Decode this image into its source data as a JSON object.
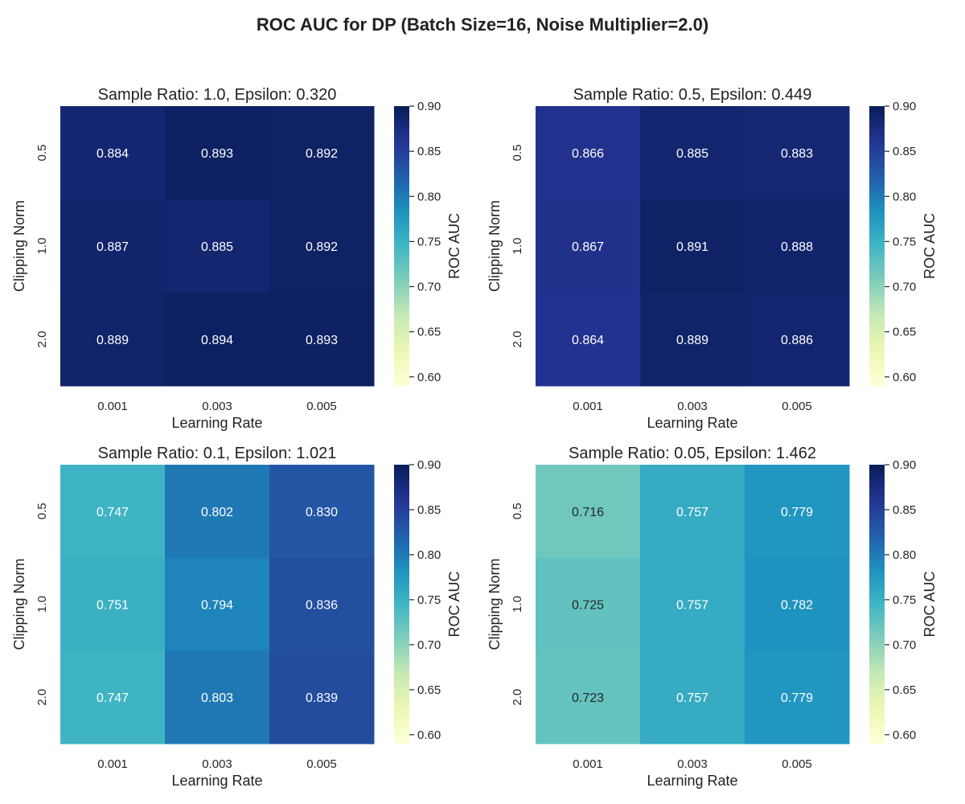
{
  "title": "ROC AUC for DP (Batch Size=16, Noise Multiplier=2.0)",
  "chart_data": [
    {
      "type": "heatmap",
      "title": "Sample Ratio: 1.0, Epsilon: 0.320",
      "xlabel": "Learning Rate",
      "ylabel": "Clipping Norm",
      "colorbar_label": "ROC AUC",
      "x": [
        "0.001",
        "0.003",
        "0.005"
      ],
      "y": [
        "0.5",
        "1.0",
        "2.0"
      ],
      "values": [
        [
          0.884,
          0.893,
          0.892
        ],
        [
          0.887,
          0.885,
          0.892
        ],
        [
          0.889,
          0.894,
          0.893
        ]
      ],
      "vmin": 0.59,
      "vmax": 0.9,
      "colorbar_ticks": [
        "0.60",
        "0.65",
        "0.70",
        "0.75",
        "0.80",
        "0.85",
        "0.90"
      ]
    },
    {
      "type": "heatmap",
      "title": "Sample Ratio: 0.5, Epsilon: 0.449",
      "xlabel": "Learning Rate",
      "ylabel": "Clipping Norm",
      "colorbar_label": "ROC AUC",
      "x": [
        "0.001",
        "0.003",
        "0.005"
      ],
      "y": [
        "0.5",
        "1.0",
        "2.0"
      ],
      "values": [
        [
          0.866,
          0.885,
          0.883
        ],
        [
          0.867,
          0.891,
          0.888
        ],
        [
          0.864,
          0.889,
          0.886
        ]
      ],
      "vmin": 0.59,
      "vmax": 0.9,
      "colorbar_ticks": [
        "0.60",
        "0.65",
        "0.70",
        "0.75",
        "0.80",
        "0.85",
        "0.90"
      ]
    },
    {
      "type": "heatmap",
      "title": "Sample Ratio: 0.1, Epsilon: 1.021",
      "xlabel": "Learning Rate",
      "ylabel": "Clipping Norm",
      "colorbar_label": "ROC AUC",
      "x": [
        "0.001",
        "0.003",
        "0.005"
      ],
      "y": [
        "0.5",
        "1.0",
        "2.0"
      ],
      "values": [
        [
          0.747,
          0.802,
          0.83
        ],
        [
          0.751,
          0.794,
          0.836
        ],
        [
          0.747,
          0.803,
          0.839
        ]
      ],
      "vmin": 0.59,
      "vmax": 0.9,
      "colorbar_ticks": [
        "0.60",
        "0.65",
        "0.70",
        "0.75",
        "0.80",
        "0.85",
        "0.90"
      ]
    },
    {
      "type": "heatmap",
      "title": "Sample Ratio: 0.05, Epsilon: 1.462",
      "xlabel": "Learning Rate",
      "ylabel": "Clipping Norm",
      "colorbar_label": "ROC AUC",
      "x": [
        "0.001",
        "0.003",
        "0.005"
      ],
      "y": [
        "0.5",
        "1.0",
        "2.0"
      ],
      "values": [
        [
          0.716,
          0.757,
          0.779
        ],
        [
          0.725,
          0.757,
          0.782
        ],
        [
          0.723,
          0.757,
          0.779
        ]
      ],
      "vmin": 0.59,
      "vmax": 0.9,
      "colorbar_ticks": [
        "0.60",
        "0.65",
        "0.70",
        "0.75",
        "0.80",
        "0.85",
        "0.90"
      ]
    }
  ],
  "colormap": "YlGnBu",
  "colormap_stops": [
    "#ffffd9",
    "#edf8b1",
    "#c7e9b4",
    "#7fcdbb",
    "#41b6c4",
    "#1d91c0",
    "#225ea8",
    "#253494",
    "#081d58"
  ]
}
